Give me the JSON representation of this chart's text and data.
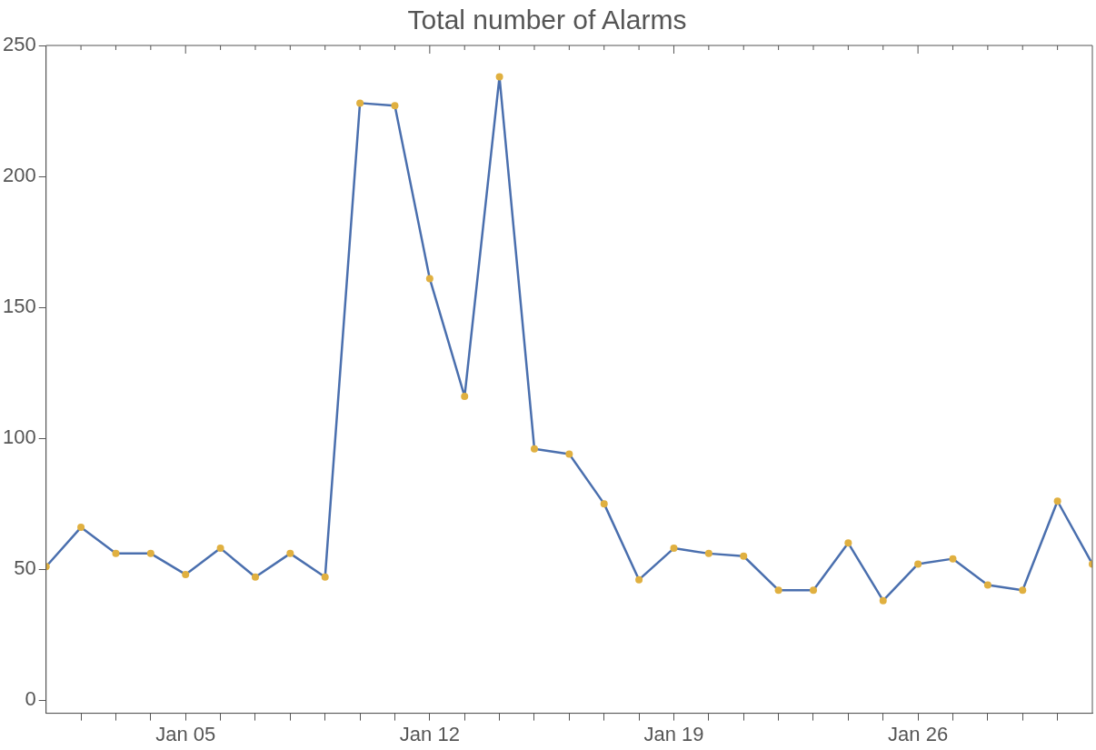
{
  "chart_data": {
    "type": "line",
    "title": "Total number of Alarms",
    "x": [
      "--01-01",
      "--01-02",
      "--01-03",
      "--01-04",
      "--01-05",
      "--01-06",
      "--01-07",
      "--01-08",
      "--01-09",
      "--01-10",
      "--01-11",
      "--01-12",
      "--01-13",
      "--01-14",
      "--01-15",
      "--01-16",
      "--01-17",
      "--01-18",
      "--01-19",
      "--01-20",
      "--01-21",
      "--01-22",
      "--01-23",
      "--01-24",
      "--01-25",
      "--01-26",
      "--01-27",
      "--01-28",
      "--01-29",
      "--01-30",
      "--01-31"
    ],
    "series": [
      {
        "color": "#4a6fae",
        "values": [
          51,
          66,
          56,
          56,
          48,
          58,
          47,
          56,
          47,
          228,
          227,
          161,
          116,
          238,
          96,
          94,
          75,
          46,
          58,
          56,
          55,
          42,
          42,
          60,
          38,
          52,
          54,
          44,
          42,
          76,
          52
        ]
      }
    ],
    "marker": "circle",
    "xlim": [
      "--01-01",
      "--01-31"
    ],
    "xticks": [
      {
        "value": "--01-02",
        "label": null
      },
      {
        "value": "--01-03",
        "label": null
      },
      {
        "value": "--01-04",
        "label": null
      },
      {
        "value": "--01-05",
        "label": "Jan 05"
      },
      {
        "value": "--01-06",
        "label": null
      },
      {
        "value": "--01-07",
        "label": null
      },
      {
        "value": "--01-08",
        "label": null
      },
      {
        "value": "--01-09",
        "label": null
      },
      {
        "value": "--01-10",
        "label": null
      },
      {
        "value": "--01-11",
        "label": null
      },
      {
        "value": "--01-12",
        "label": "Jan 12"
      },
      {
        "value": "--01-13",
        "label": null
      },
      {
        "value": "--01-14",
        "label": null
      },
      {
        "value": "--01-15",
        "label": null
      },
      {
        "value": "--01-16",
        "label": null
      },
      {
        "value": "--01-17",
        "label": null
      },
      {
        "value": "--01-18",
        "label": null
      },
      {
        "value": "--01-19",
        "label": "Jan 19"
      },
      {
        "value": "--01-20",
        "label": null
      },
      {
        "value": "--01-21",
        "label": null
      },
      {
        "value": "--01-22",
        "label": null
      },
      {
        "value": "--01-23",
        "label": null
      },
      {
        "value": "--01-24",
        "label": null
      },
      {
        "value": "--01-25",
        "label": null
      },
      {
        "value": "--01-26",
        "label": "Jan 26"
      },
      {
        "value": "--01-27",
        "label": null
      },
      {
        "value": "--01-28",
        "label": null
      },
      {
        "value": "--01-29",
        "label": null
      },
      {
        "value": "--01-30",
        "label": null
      }
    ],
    "ylim": [
      -5,
      250
    ],
    "yticks": [
      0,
      50,
      100,
      150,
      200,
      250
    ],
    "grid": false,
    "legend": false
  }
}
